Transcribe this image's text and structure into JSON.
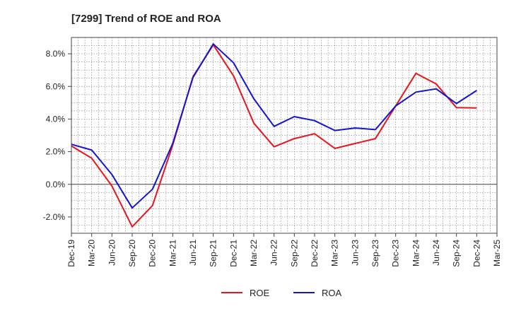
{
  "chart_data": {
    "type": "line",
    "title": "[7299]  Trend of ROE and ROA",
    "xlabel": "",
    "ylabel": "",
    "categories": [
      "Dec-19",
      "Mar-20",
      "Jun-20",
      "Sep-20",
      "Dec-20",
      "Mar-21",
      "Jun-21",
      "Sep-21",
      "Dec-21",
      "Mar-22",
      "Jun-22",
      "Sep-22",
      "Dec-22",
      "Mar-23",
      "Jun-23",
      "Sep-23",
      "Dec-23",
      "Mar-24",
      "Jun-24",
      "Sep-24",
      "Dec-24",
      "Mar-25"
    ],
    "ylim": [
      -3.0,
      9.0
    ],
    "yticks": [
      -2.0,
      0.0,
      2.0,
      4.0,
      6.0,
      8.0
    ],
    "ytick_labels": [
      "-2.0%",
      "0.0%",
      "2.0%",
      "4.0%",
      "6.0%",
      "8.0%"
    ],
    "grid": true,
    "legend_position": "bottom-center",
    "series": [
      {
        "name": "ROE",
        "color": "#e8141e",
        "values": [
          2.35,
          1.6,
          -0.1,
          -2.6,
          -1.3,
          2.4,
          6.6,
          8.55,
          6.65,
          3.75,
          2.3,
          2.8,
          3.1,
          2.2,
          2.5,
          2.8,
          4.8,
          6.8,
          6.15,
          4.7,
          4.68,
          null
        ]
      },
      {
        "name": "ROA",
        "color": "#1414d2",
        "values": [
          2.45,
          2.1,
          0.6,
          -1.45,
          -0.3,
          2.5,
          6.55,
          8.6,
          7.45,
          5.25,
          3.55,
          4.15,
          3.9,
          3.3,
          3.45,
          3.35,
          4.8,
          5.65,
          5.85,
          4.95,
          5.75,
          null
        ]
      }
    ]
  }
}
